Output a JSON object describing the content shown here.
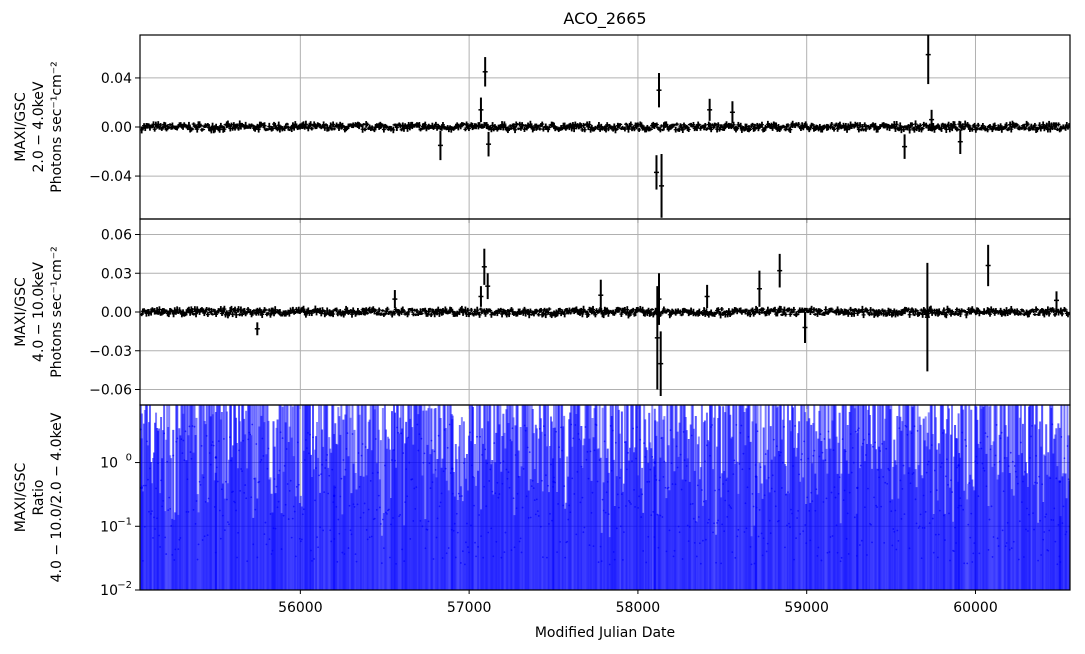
{
  "title": "ACO_2665",
  "xlabel": "Modified Julian Date",
  "x_ticks": [
    56000,
    57000,
    58000,
    59000,
    60000
  ],
  "colors": {
    "panel1": "#000000",
    "panel2": "#000000",
    "panel3": "#0000ff",
    "grid": "#b0b0b0"
  },
  "chart_data": [
    {
      "type": "scatter",
      "panel": "top",
      "ylabel": [
        "MAXI/GSC",
        "2.0 − 4.0keV",
        "Photons sec⁻¹cm⁻²"
      ],
      "xlim": [
        55050,
        60560
      ],
      "ylim": [
        -0.075,
        0.075
      ],
      "y_ticks": [
        -0.04,
        0.0,
        0.04
      ],
      "y_tick_labels": [
        "−0.04",
        "0.00",
        "0.04"
      ],
      "grid": true,
      "series": [
        {
          "error_bars": true,
          "points": [
            {
              "x": 56830,
              "y": -0.015,
              "err": 0.012
            },
            {
              "x": 57070,
              "y": 0.014,
              "err": 0.01
            },
            {
              "x": 57095,
              "y": 0.045,
              "err": 0.012
            },
            {
              "x": 57115,
              "y": -0.014,
              "err": 0.01
            },
            {
              "x": 58110,
              "y": -0.037,
              "err": 0.014
            },
            {
              "x": 58125,
              "y": 0.03,
              "err": 0.014
            },
            {
              "x": 58140,
              "y": -0.048,
              "err": 0.026
            },
            {
              "x": 58425,
              "y": 0.014,
              "err": 0.009
            },
            {
              "x": 58560,
              "y": 0.012,
              "err": 0.009
            },
            {
              "x": 59580,
              "y": -0.016,
              "err": 0.01
            },
            {
              "x": 59720,
              "y": 0.059,
              "err": 0.024
            },
            {
              "x": 59740,
              "y": 0.006,
              "err": 0.008
            },
            {
              "x": 59910,
              "y": -0.012,
              "err": 0.01
            }
          ]
        }
      ]
    },
    {
      "type": "scatter",
      "panel": "middle",
      "ylabel": [
        "MAXI/GSC",
        "4.0 − 10.0keV",
        "Photons sec⁻¹cm⁻²"
      ],
      "xlim": [
        55050,
        60560
      ],
      "ylim": [
        -0.072,
        0.072
      ],
      "y_ticks": [
        -0.06,
        -0.03,
        0.0,
        0.03,
        0.06
      ],
      "y_tick_labels": [
        "−0.06",
        "−0.03",
        "0.00",
        "0.03",
        "0.06"
      ],
      "grid": true,
      "series": [
        {
          "error_bars": true,
          "points": [
            {
              "x": 55745,
              "y": -0.013,
              "err": 0.005
            },
            {
              "x": 56560,
              "y": 0.01,
              "err": 0.007
            },
            {
              "x": 57070,
              "y": 0.012,
              "err": 0.008
            },
            {
              "x": 57090,
              "y": 0.035,
              "err": 0.014
            },
            {
              "x": 57110,
              "y": 0.02,
              "err": 0.01
            },
            {
              "x": 57780,
              "y": 0.013,
              "err": 0.012
            },
            {
              "x": 58115,
              "y": -0.02,
              "err": 0.04
            },
            {
              "x": 58125,
              "y": 0.01,
              "err": 0.02
            },
            {
              "x": 58135,
              "y": -0.04,
              "err": 0.025
            },
            {
              "x": 58410,
              "y": 0.012,
              "err": 0.009
            },
            {
              "x": 58720,
              "y": 0.018,
              "err": 0.014
            },
            {
              "x": 58840,
              "y": 0.032,
              "err": 0.013
            },
            {
              "x": 58990,
              "y": -0.012,
              "err": 0.012
            },
            {
              "x": 59715,
              "y": -0.004,
              "err": 0.042
            },
            {
              "x": 60075,
              "y": 0.036,
              "err": 0.016
            },
            {
              "x": 60480,
              "y": 0.009,
              "err": 0.007
            }
          ]
        }
      ]
    },
    {
      "type": "scatter",
      "panel": "bottom",
      "ylabel": [
        "MAXI/GSC",
        "Ratio",
        "4.0 − 10.0/2.0 − 4.0keV"
      ],
      "yscale": "log",
      "xlim": [
        55050,
        60560
      ],
      "ylim": [
        0.01,
        8
      ],
      "y_ticks": [
        0.01,
        0.1,
        1
      ],
      "y_tick_labels": [
        "10",
        "10",
        "10"
      ],
      "y_tick_exponents": [
        "−2",
        "−1",
        "0"
      ],
      "grid": true,
      "series": [
        {
          "error_bars": true,
          "points": [
            {
              "x": 55060,
              "y": 0.4,
              "err": 2.0
            },
            {
              "x": 55500,
              "y": 1.2,
              "err": 5.0
            },
            {
              "x": 56200,
              "y": 0.3,
              "err": 2.5
            },
            {
              "x": 56900,
              "y": 0.8,
              "err": 4.0
            },
            {
              "x": 57500,
              "y": 0.5,
              "err": 3.0
            },
            {
              "x": 58100,
              "y": 1.0,
              "err": 6.0
            },
            {
              "x": 58700,
              "y": 0.6,
              "err": 3.5
            },
            {
              "x": 59300,
              "y": 0.4,
              "err": 2.5
            },
            {
              "x": 59900,
              "y": 0.9,
              "err": 5.0
            },
            {
              "x": 60500,
              "y": 0.5,
              "err": 3.0
            }
          ]
        }
      ]
    }
  ]
}
